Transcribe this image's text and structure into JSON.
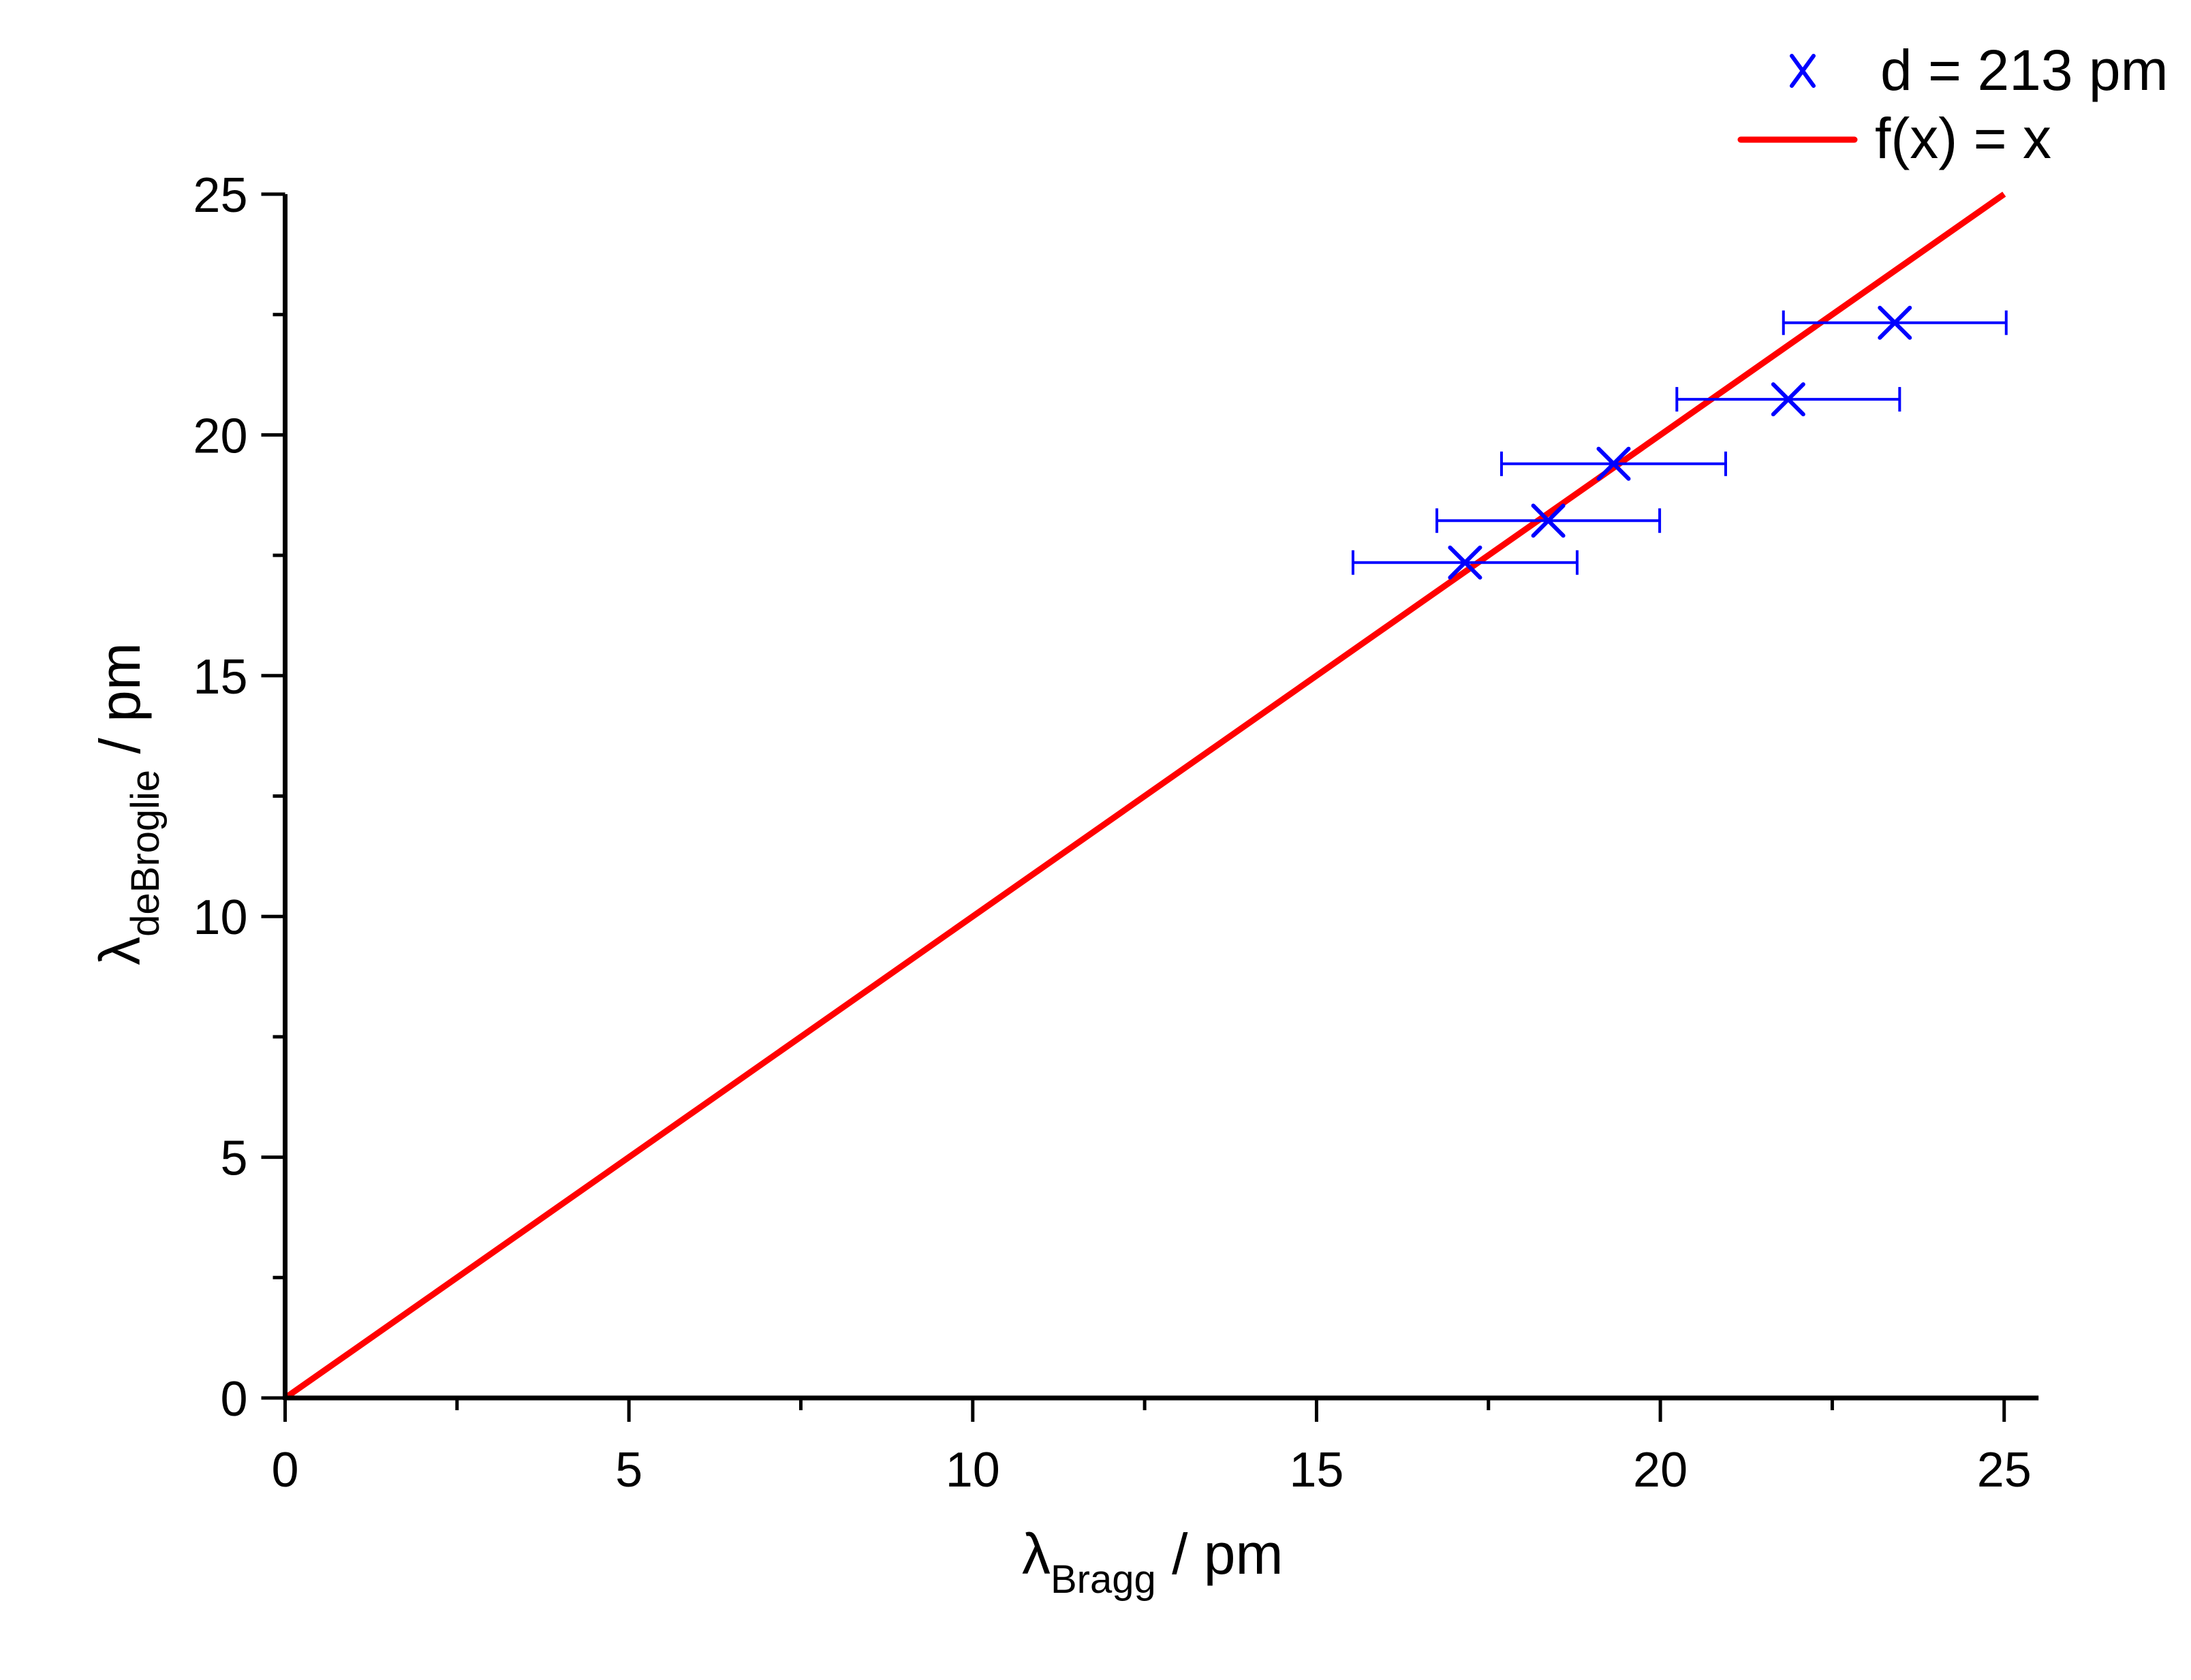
{
  "chart_data": {
    "type": "scatter",
    "title": "",
    "xlabel": {
      "symbol": "λ",
      "subscript": "Bragg",
      "unit": " / pm"
    },
    "ylabel": {
      "symbol": "λ",
      "subscript": "deBroglie",
      "unit": " / pm"
    },
    "xlim": [
      0,
      25.5
    ],
    "ylim": [
      0,
      25
    ],
    "x_ticks": [
      0,
      5,
      10,
      15,
      20,
      25
    ],
    "y_ticks": [
      0,
      5,
      10,
      15,
      20,
      25
    ],
    "x_minor_ticks": [
      2.5,
      7.5,
      12.5,
      17.5,
      22.5
    ],
    "y_minor_ticks": [
      2.5,
      7.5,
      12.5,
      17.5,
      22.5
    ],
    "grid": false,
    "legend_position": "top-right (outside plot)",
    "series": [
      {
        "name": "d = 213 pm",
        "type": "scatter",
        "marker": "x",
        "color": "#0000ff",
        "x": [
          17.16,
          18.37,
          19.32,
          21.86,
          23.41
        ],
        "y": [
          17.35,
          18.22,
          19.4,
          20.74,
          22.33
        ],
        "x_error": [
          1.63,
          1.62,
          1.63,
          1.62,
          1.62
        ]
      },
      {
        "name": "f(x) = x",
        "type": "line",
        "color": "#ff0000",
        "x": [
          0,
          25
        ],
        "y": [
          0,
          25
        ]
      }
    ]
  },
  "legend": {
    "items": [
      {
        "label": "d = 213 pm",
        "symbol": "x-marker",
        "color": "#0000ff"
      },
      {
        "label": "f(x) = x",
        "symbol": "line",
        "color": "#ff0000"
      }
    ]
  },
  "axes": {
    "x_title_symbol": "λ",
    "x_title_sub": "Bragg",
    "x_title_unit": " / pm",
    "y_title_symbol": "λ",
    "y_title_sub": "deBroglie",
    "y_title_unit": " / pm"
  }
}
